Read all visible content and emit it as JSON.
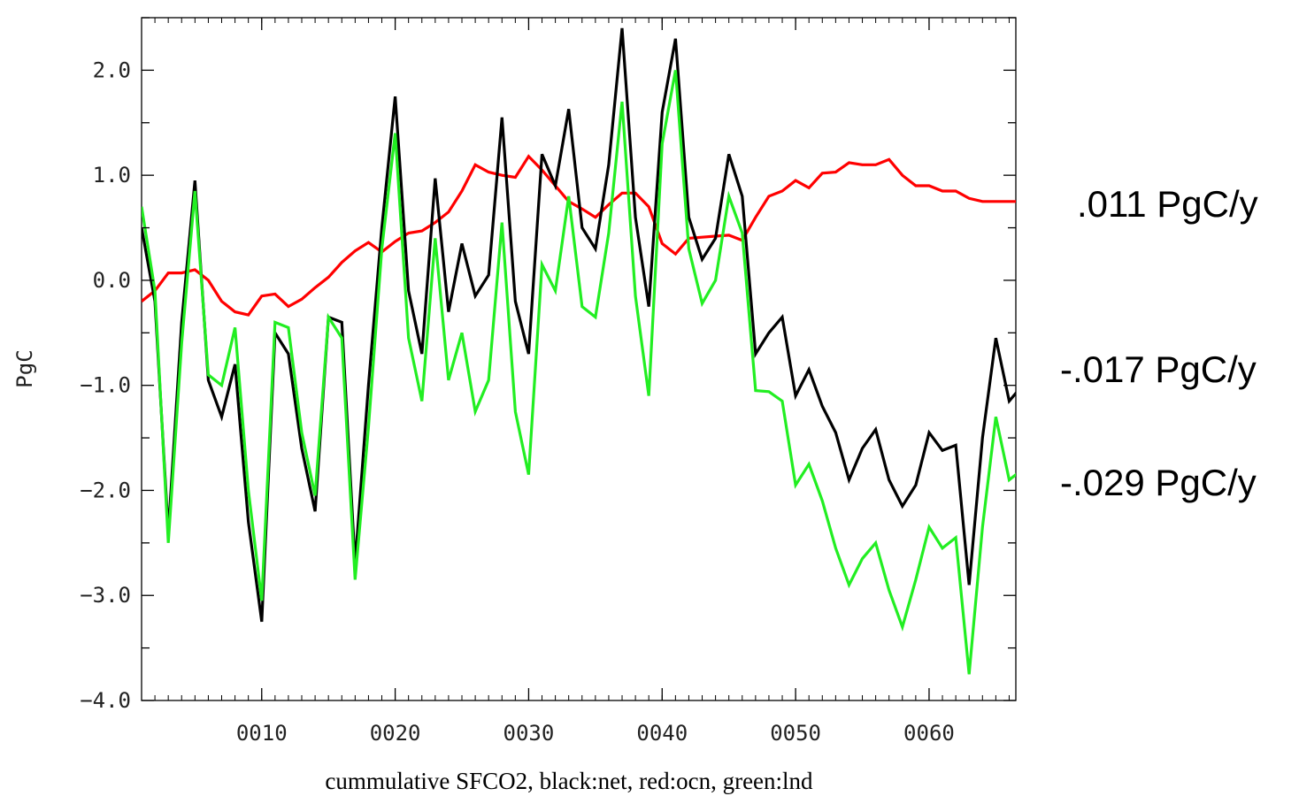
{
  "chart_data": {
    "type": "line",
    "xlabel": "cummulative SFCO2, black:net, red:ocn, green:lnd",
    "ylabel": "PgC",
    "xlim": [
      1,
      66.5
    ],
    "ylim": [
      -4.0,
      2.5
    ],
    "x_ticks": [
      10,
      20,
      30,
      40,
      50,
      60
    ],
    "x_tick_labels": [
      "0010",
      "0020",
      "0030",
      "0040",
      "0050",
      "0060"
    ],
    "y_ticks": [
      -4.0,
      -3.0,
      -2.0,
      -1.0,
      0.0,
      1.0,
      2.0
    ],
    "y_tick_labels": [
      "−4.0",
      "−3.0",
      "−2.0",
      "−1.0",
      "0.0",
      "1.0",
      "2.0"
    ],
    "x": [
      1,
      2,
      3,
      4,
      5,
      6,
      7,
      8,
      9,
      10,
      11,
      12,
      13,
      14,
      15,
      16,
      17,
      18,
      19,
      20,
      21,
      22,
      23,
      24,
      25,
      26,
      27,
      28,
      29,
      30,
      31,
      32,
      33,
      34,
      35,
      36,
      37,
      38,
      39,
      40,
      41,
      42,
      43,
      44,
      45,
      46,
      47,
      48,
      49,
      50,
      51,
      52,
      53,
      54,
      55,
      56,
      57,
      58,
      59,
      60,
      61,
      62,
      63,
      64,
      65,
      66,
      67
    ],
    "series": [
      {
        "name": "net",
        "color": "#000000",
        "values": [
          0.5,
          -0.2,
          -2.4,
          -0.4,
          0.95,
          -0.95,
          -1.3,
          -0.8,
          -2.3,
          -3.25,
          -0.5,
          -0.7,
          -1.6,
          -2.2,
          -0.35,
          -0.4,
          -2.7,
          -1.0,
          0.5,
          1.75,
          -0.1,
          -0.7,
          0.97,
          -0.3,
          0.35,
          -0.15,
          0.05,
          1.55,
          -0.2,
          -0.7,
          1.2,
          0.9,
          1.63,
          0.5,
          0.3,
          1.1,
          2.4,
          0.6,
          -0.25,
          1.6,
          2.3,
          0.6,
          0.2,
          0.4,
          1.2,
          0.8,
          -0.7,
          -0.5,
          -0.35,
          -1.1,
          -0.85,
          -1.2,
          -1.45,
          -1.9,
          -1.6,
          -1.42,
          -1.9,
          -2.15,
          -1.95,
          -1.45,
          -1.62,
          -1.57,
          -2.9,
          -1.5,
          -0.55,
          -1.15,
          -1.0
        ]
      },
      {
        "name": "ocn",
        "color": "#ff0000",
        "values": [
          -0.2,
          -0.1,
          0.07,
          0.07,
          0.1,
          0.0,
          -0.2,
          -0.3,
          -0.33,
          -0.15,
          -0.13,
          -0.25,
          -0.18,
          -0.07,
          0.03,
          0.17,
          0.28,
          0.36,
          0.27,
          0.37,
          0.45,
          0.47,
          0.55,
          0.65,
          0.85,
          1.1,
          1.03,
          1.0,
          0.98,
          1.18,
          1.05,
          0.9,
          0.75,
          0.68,
          0.6,
          0.72,
          0.83,
          0.83,
          0.7,
          0.35,
          0.25,
          0.4,
          0.41,
          0.42,
          0.43,
          0.38,
          0.6,
          0.8,
          0.85,
          0.95,
          0.88,
          1.02,
          1.03,
          1.12,
          1.1,
          1.1,
          1.15,
          1.0,
          0.9,
          0.9,
          0.85,
          0.85,
          0.78,
          0.75,
          0.75,
          0.75,
          0.75
        ]
      },
      {
        "name": "lnd",
        "color": "#22ee22",
        "values": [
          0.7,
          -0.1,
          -2.5,
          -0.6,
          0.85,
          -0.9,
          -1.0,
          -0.45,
          -2.0,
          -3.05,
          -0.4,
          -0.45,
          -1.45,
          -2.05,
          -0.35,
          -0.55,
          -2.85,
          -1.4,
          0.3,
          1.4,
          -0.55,
          -1.15,
          0.4,
          -0.95,
          -0.5,
          -1.25,
          -0.95,
          0.55,
          -1.25,
          -1.85,
          0.15,
          -0.1,
          0.8,
          -0.25,
          -0.35,
          0.45,
          1.7,
          -0.15,
          -1.1,
          1.3,
          2.0,
          0.3,
          -0.22,
          0.0,
          0.8,
          0.45,
          -1.05,
          -1.06,
          -1.15,
          -1.95,
          -1.75,
          -2.1,
          -2.55,
          -2.9,
          -2.65,
          -2.5,
          -2.95,
          -3.3,
          -2.85,
          -2.35,
          -2.55,
          -2.45,
          -3.75,
          -2.35,
          -1.3,
          -1.9,
          -1.8
        ]
      }
    ]
  },
  "annotations": {
    "ocn_rate": ".011 PgC/y",
    "net_rate": "-.017 PgC/y",
    "lnd_rate": "-.029 PgC/y"
  }
}
